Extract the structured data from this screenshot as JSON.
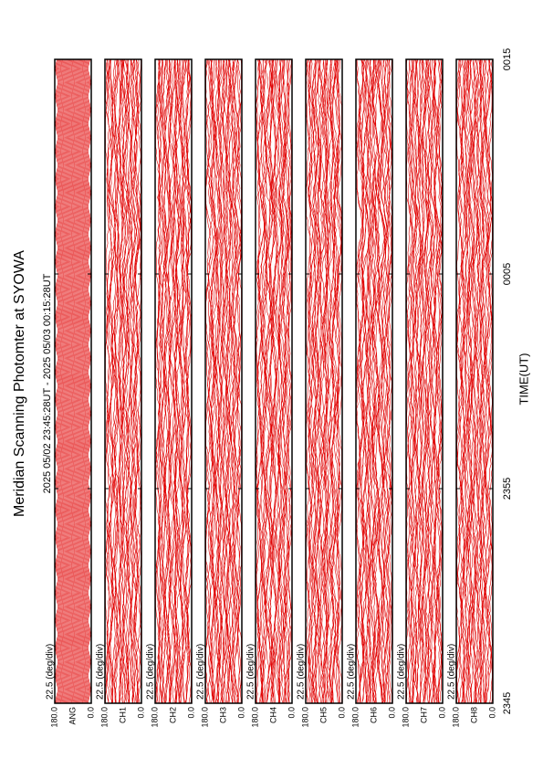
{
  "chart_data": {
    "type": "multi-panel",
    "title": "Meridian Scanning Photomter at SYOWA",
    "subtitle": "2025 05/02 23:45:28UT - 2025 05/03 00:15:28UT",
    "x_label": "TIME(UT)",
    "xlim": [
      0,
      30
    ],
    "xticks": [
      {
        "value": 0,
        "label": "2345"
      },
      {
        "value": 10,
        "label": "2355"
      },
      {
        "value": 20,
        "label": "0005"
      },
      {
        "value": 30,
        "label": "0015"
      }
    ],
    "ylim": [
      0,
      180
    ],
    "yticks": [
      {
        "value": 180,
        "label": "180.0"
      },
      {
        "value": 0,
        "label": "0.0"
      }
    ],
    "color": "#e00000",
    "panels": [
      {
        "channel": "ANG",
        "scale": "22.5 (deg/div)"
      },
      {
        "channel": "CH1",
        "scale": "22.5 (deg/div)"
      },
      {
        "channel": "CH2",
        "scale": "22.5 (deg/div)"
      },
      {
        "channel": "CH3",
        "scale": "22.5 (deg/div)"
      },
      {
        "channel": "CH4",
        "scale": "22.5 (deg/div)"
      },
      {
        "channel": "CH5",
        "scale": "22.5 (deg/div)"
      },
      {
        "channel": "CH6",
        "scale": "22.5 (deg/div)"
      },
      {
        "channel": "CH7",
        "scale": "22.5 (deg/div)"
      },
      {
        "channel": "CH8",
        "scale": "22.5 (deg/div)"
      }
    ]
  }
}
